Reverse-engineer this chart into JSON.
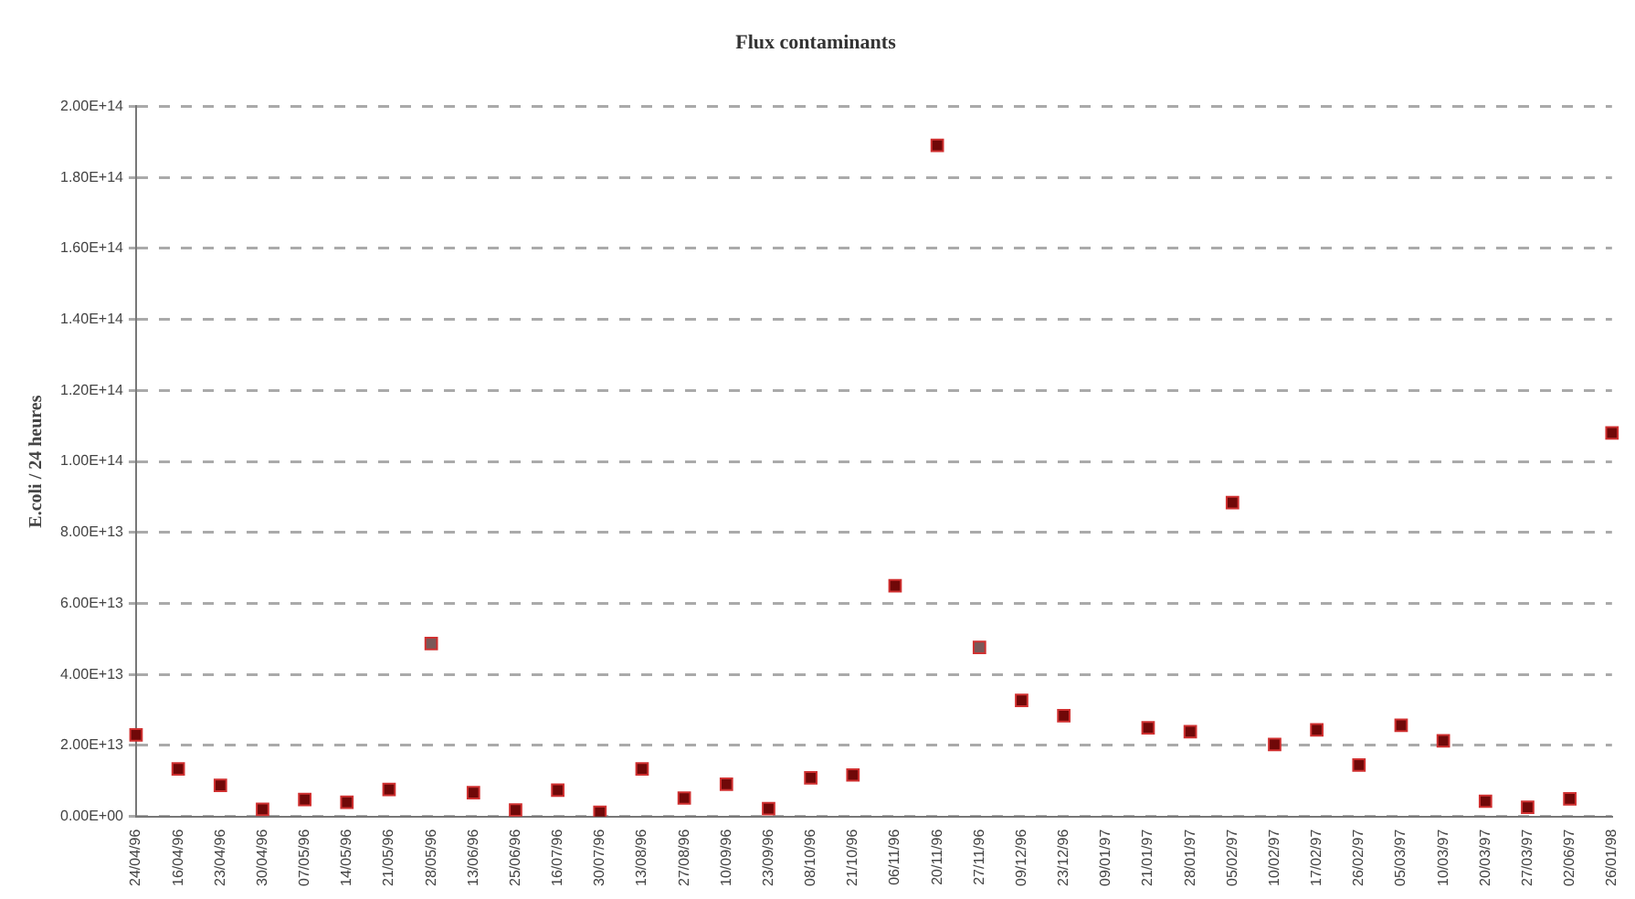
{
  "chart_data": {
    "type": "scatter",
    "title": "Flux contaminants",
    "ylabel": "E.coli / 24 heures",
    "categories": [
      "24/04/96",
      "16/04/96",
      "23/04/96",
      "30/04/96",
      "07/05/96",
      "14/05/96",
      "21/05/96",
      "28/05/96",
      "13/06/96",
      "25/06/96",
      "16/07/96",
      "30/07/96",
      "13/08/96",
      "27/08/96",
      "10/09/96",
      "23/09/96",
      "08/10/96",
      "21/10/96",
      "06/11/96",
      "20/11/96",
      "27/11/96",
      "09/12/96",
      "23/12/96",
      "09/01/97",
      "21/01/97",
      "28/01/97",
      "05/02/97",
      "10/02/97",
      "17/02/97",
      "26/02/97",
      "05/03/97",
      "10/03/97",
      "20/03/97",
      "27/03/97",
      "02/06/97",
      "26/01/98"
    ],
    "values": [
      23000000000000,
      13400000000000,
      8800000000000,
      2000000000000,
      4800000000000,
      4000000000000,
      7600000000000,
      48700000000000,
      6700000000000,
      1800000000000,
      7400000000000,
      1200000000000,
      13400000000000,
      5200000000000,
      9100000000000,
      2200000000000,
      10900000000000,
      11700000000000,
      65000000000000,
      189000000000000,
      47600000000000,
      32700000000000,
      28400000000000,
      null,
      25000000000000,
      23900000000000,
      88400000000000,
      20300000000000,
      24400000000000,
      14500000000000,
      25700000000000,
      21300000000000,
      4300000000000,
      2600000000000,
      5000000000000,
      108000000000000
    ],
    "colors": [
      "#700808",
      "#700808",
      "#700808",
      "#700808",
      "#700808",
      "#700808",
      "#700808",
      "#7a5858",
      "#700808",
      "#700808",
      "#700808",
      "#700808",
      "#700808",
      "#700808",
      "#700808",
      "#700808",
      "#700808",
      "#700808",
      "#700808",
      "#700808",
      "#7a5858",
      "#700808",
      "#700808",
      "#700808",
      "#700808",
      "#700808",
      "#700808",
      "#700808",
      "#700808",
      "#700808",
      "#700808",
      "#700808",
      "#700808",
      "#700808",
      "#700808",
      "#700808"
    ],
    "ylim": [
      0,
      200000000000000
    ],
    "yticks": [
      {
        "value": 0,
        "label": "0.00E+00"
      },
      {
        "value": 20000000000000,
        "label": "2.00E+13"
      },
      {
        "value": 40000000000000,
        "label": "4.00E+13"
      },
      {
        "value": 60000000000000,
        "label": "6.00E+13"
      },
      {
        "value": 80000000000000,
        "label": "8.00E+13"
      },
      {
        "value": 100000000000000,
        "label": "1.00E+14"
      },
      {
        "value": 120000000000000,
        "label": "1.20E+14"
      },
      {
        "value": 140000000000000,
        "label": "1.40E+14"
      },
      {
        "value": 160000000000000,
        "label": "1.60E+14"
      },
      {
        "value": 180000000000000,
        "label": "1.80E+14"
      },
      {
        "value": 200000000000000,
        "label": "2.00E+14"
      }
    ],
    "grid": "y",
    "marker": "square"
  }
}
